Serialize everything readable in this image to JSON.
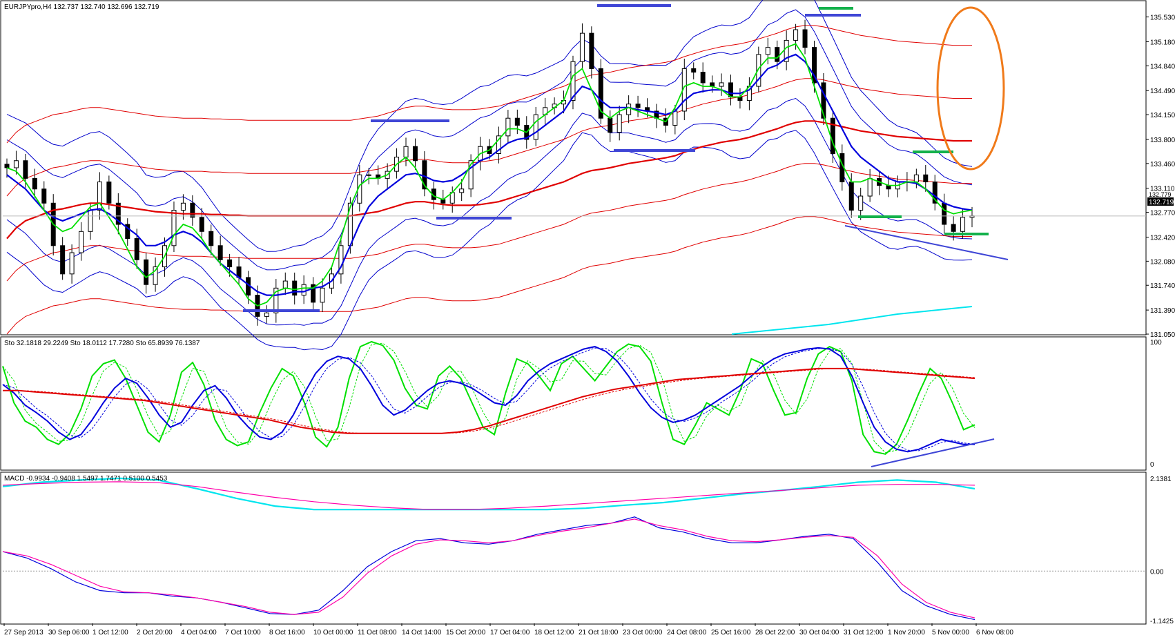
{
  "header": {
    "price_title": "EURJPYpro,H4  132.737 132.740 132.696 132.719",
    "sto_title": "Sto 32.1818 29.2249   Sto 18.0112 17.7280   Sto 65.8939 76.1387",
    "macd_title": "MACD -0.9934 -0.9408 1.5497 1.7471 0.5100 0.5453"
  },
  "current_price_tag": "132.719",
  "current_price_aux": "132.779",
  "colors": {
    "candle": "#000000",
    "ma_green": "#00e000",
    "ma_blue": "#0000dd",
    "ma_red": "#e00000",
    "band_blue": "#0000cc",
    "band_red": "#e00000",
    "cyan": "#00e5ee",
    "magenta": "#ff00aa",
    "orange": "#f07a1a",
    "annot_green": "#14b14b",
    "annot_blue": "#3f46d6"
  },
  "chart_data": [
    {
      "type": "candlestick",
      "symbol": "EURJPYpro",
      "timeframe": "H4",
      "ohlc_last": {
        "open": 132.737,
        "high": 132.74,
        "low": 132.696,
        "close": 132.719
      },
      "ylim": [
        131.05,
        135.75
      ],
      "y_ticks": [
        "135.530",
        "135.180",
        "134.840",
        "134.490",
        "134.150",
        "133.800",
        "133.460",
        "133.110",
        "132.770",
        "132.420",
        "132.080",
        "131.740",
        "131.390",
        "131.050"
      ],
      "y_tick_values": [
        135.53,
        135.18,
        134.84,
        134.49,
        134.15,
        133.8,
        133.46,
        133.11,
        132.77,
        132.42,
        132.08,
        131.74,
        131.39,
        131.05
      ],
      "x_ticks": [
        "27 Sep 2013",
        "30 Sep 06:00",
        "1 Oct 12:00",
        "2 Oct 20:00",
        "4 Oct 04:00",
        "7 Oct 10:00",
        "8 Oct 16:00",
        "10 Oct 00:00",
        "11 Oct 08:00",
        "14 Oct 14:00",
        "15 Oct 20:00",
        "17 Oct 04:00",
        "18 Oct 12:00",
        "21 Oct 18:00",
        "23 Oct 00:00",
        "24 Oct 08:00",
        "25 Oct 16:00",
        "28 Oct 22:00",
        "30 Oct 04:00",
        "31 Oct 12:00",
        "1 Nov 20:00",
        "5 Nov 00:00",
        "6 Nov 08:00"
      ],
      "close_path": [
        133.4,
        133.5,
        133.25,
        133.1,
        132.9,
        132.3,
        131.9,
        132.2,
        132.5,
        132.8,
        133.2,
        132.9,
        132.6,
        132.4,
        132.1,
        131.75,
        132.0,
        132.3,
        132.8,
        132.9,
        132.7,
        132.5,
        132.3,
        132.1,
        132.0,
        131.85,
        131.6,
        131.3,
        131.35,
        131.7,
        131.8,
        131.6,
        131.75,
        131.5,
        131.7,
        131.9,
        132.3,
        132.9,
        133.3,
        133.3,
        133.25,
        133.35,
        133.55,
        133.7,
        133.5,
        133.1,
        132.95,
        132.9,
        133.05,
        133.1,
        133.5,
        133.7,
        133.6,
        133.85,
        134.1,
        134.0,
        133.8,
        134.15,
        134.25,
        134.3,
        134.35,
        134.9,
        135.3,
        134.8,
        134.1,
        133.9,
        134.15,
        134.3,
        134.25,
        134.2,
        134.1,
        134.0,
        134.2,
        134.8,
        134.75,
        134.6,
        134.55,
        134.6,
        134.4,
        134.35,
        134.55,
        135.0,
        135.1,
        134.9,
        135.2,
        135.35,
        135.1,
        134.6,
        134.1,
        133.6,
        133.2,
        132.8,
        133.0,
        133.25,
        133.15,
        133.1,
        133.2,
        133.2,
        133.3,
        133.2,
        132.9,
        132.6,
        132.5,
        132.7,
        132.72
      ],
      "ma_green": [
        133.4,
        133.35,
        133.2,
        133.0,
        132.8,
        132.6,
        132.5,
        132.55,
        132.7,
        132.85,
        132.9,
        132.7,
        132.5,
        132.25,
        132.0,
        131.85,
        131.95,
        132.15,
        132.45,
        132.6,
        132.55,
        132.4,
        132.2,
        132.05,
        131.9,
        131.75,
        131.55,
        131.45,
        131.5,
        131.65,
        131.7,
        131.68,
        131.7,
        131.7,
        131.8,
        132.0,
        132.4,
        132.85,
        133.15,
        133.25,
        133.25,
        133.3,
        133.45,
        133.55,
        133.4,
        133.15,
        133.0,
        132.95,
        133.05,
        133.2,
        133.45,
        133.6,
        133.65,
        133.8,
        133.95,
        133.95,
        133.9,
        134.05,
        134.15,
        134.25,
        134.35,
        134.7,
        134.8,
        134.5,
        134.2,
        134.1,
        134.2,
        134.25,
        134.2,
        134.15,
        134.1,
        134.05,
        134.25,
        134.55,
        134.6,
        134.55,
        134.55,
        134.5,
        134.4,
        134.4,
        134.55,
        134.8,
        134.95,
        134.95,
        135.1,
        135.15,
        134.95,
        134.55,
        134.15,
        133.75,
        133.45,
        133.2,
        133.2,
        133.25,
        133.2,
        133.15,
        133.15,
        133.2,
        133.2,
        133.1,
        132.95,
        132.8,
        132.75,
        132.78,
        132.8
      ],
      "ma_blue": [
        133.3,
        133.2,
        133.1,
        132.95,
        132.8,
        132.7,
        132.65,
        132.7,
        132.75,
        132.8,
        132.82,
        132.75,
        132.65,
        132.55,
        132.45,
        132.3,
        132.3,
        132.35,
        132.45,
        132.5,
        132.45,
        132.35,
        132.2,
        132.05,
        131.95,
        131.85,
        131.75,
        131.65,
        131.6,
        131.6,
        131.62,
        131.65,
        131.65,
        131.7,
        131.72,
        131.8,
        132.0,
        132.3,
        132.6,
        132.85,
        133.0,
        133.1,
        133.2,
        133.3,
        133.32,
        133.28,
        133.22,
        133.2,
        133.22,
        133.3,
        133.4,
        133.5,
        133.55,
        133.65,
        133.75,
        133.8,
        133.82,
        133.9,
        134.0,
        134.1,
        134.2,
        134.4,
        134.55,
        134.5,
        134.35,
        134.25,
        134.25,
        134.25,
        134.22,
        134.2,
        134.18,
        134.15,
        134.2,
        134.35,
        134.45,
        134.48,
        134.5,
        134.5,
        134.45,
        134.45,
        134.5,
        134.65,
        134.8,
        134.85,
        134.95,
        135.0,
        134.9,
        134.7,
        134.45,
        134.2,
        133.95,
        133.7,
        133.55,
        133.45,
        133.35,
        133.25,
        133.2,
        133.2,
        133.18,
        133.1,
        133.0,
        132.9,
        132.85,
        132.82,
        132.8
      ],
      "ma_red_thick": [
        132.4,
        132.55,
        132.65,
        132.7,
        132.75,
        132.8,
        132.82,
        132.85,
        132.88,
        132.9,
        132.9,
        132.88,
        132.86,
        132.84,
        132.82,
        132.8,
        132.78,
        132.77,
        132.76,
        132.75,
        132.75,
        132.75,
        132.74,
        132.74,
        132.73,
        132.73,
        132.72,
        132.72,
        132.72,
        132.72,
        132.72,
        132.72,
        132.72,
        132.72,
        132.72,
        132.72,
        132.72,
        132.72,
        132.74,
        132.76,
        132.78,
        132.82,
        132.86,
        132.9,
        132.92,
        132.92,
        132.9,
        132.88,
        132.87,
        132.87,
        132.87,
        132.88,
        132.9,
        132.92,
        132.96,
        133.0,
        133.04,
        133.08,
        133.12,
        133.16,
        133.2,
        133.26,
        133.32,
        133.36,
        133.38,
        133.4,
        133.43,
        133.46,
        133.48,
        133.5,
        133.52,
        133.54,
        133.57,
        133.62,
        133.66,
        133.7,
        133.73,
        133.76,
        133.78,
        133.8,
        133.83,
        133.87,
        133.91,
        133.95,
        134.0,
        134.04,
        134.06,
        134.06,
        134.04,
        134.01,
        133.98,
        133.95,
        133.92,
        133.9,
        133.88,
        133.86,
        133.84,
        133.83,
        133.82,
        133.81,
        133.8,
        133.79,
        133.78,
        133.78,
        133.78
      ]
    },
    {
      "type": "line",
      "name": "Sto",
      "ylim": [
        0,
        100
      ],
      "y_ticks": [
        "100",
        "0"
      ],
      "y_tick_values": [
        100,
        0
      ],
      "series": [
        {
          "values": [
            80,
            50,
            35,
            30,
            20,
            16,
            25,
            45,
            72,
            82,
            85,
            70,
            48,
            26,
            18,
            40,
            75,
            83,
            65,
            36,
            20,
            15,
            18,
            42,
            62,
            78,
            72,
            50,
            22,
            14,
            30,
            70,
            96,
            100,
            97,
            85,
            62,
            48,
            45,
            72,
            80,
            70,
            50,
            30,
            24,
            58,
            86,
            82,
            72,
            60,
            82,
            88,
            78,
            68,
            80,
            92,
            98,
            96,
            84,
            50,
            20,
            16,
            32,
            50,
            45,
            40,
            60,
            86,
            82,
            60,
            40,
            42,
            70,
            90,
            96,
            92,
            68,
            24,
            10,
            8,
            16,
            36,
            58,
            78,
            70,
            50,
            28,
            32
          ]
        },
        {
          "values": [
            65,
            58,
            48,
            42,
            35,
            26,
            20,
            24,
            36,
            50,
            62,
            70,
            66,
            54,
            40,
            30,
            34,
            48,
            60,
            64,
            54,
            40,
            30,
            22,
            20,
            26,
            40,
            58,
            74,
            84,
            88,
            86,
            78,
            64,
            48,
            40,
            44,
            52,
            60,
            66,
            68,
            66,
            62,
            56,
            50,
            48,
            56,
            68,
            76,
            82,
            86,
            90,
            94,
            96,
            92,
            84,
            72,
            58,
            46,
            38,
            34,
            36,
            40,
            46,
            52,
            58,
            64,
            72,
            80,
            86,
            90,
            92,
            94,
            95,
            94,
            88,
            72,
            50,
            30,
            18,
            12,
            10,
            12,
            16,
            20,
            18,
            16,
            16
          ]
        },
        {
          "values": [
            60,
            60,
            59,
            58,
            57,
            56,
            55,
            54,
            53,
            52,
            50,
            48,
            46,
            44,
            42,
            40,
            38,
            36,
            33,
            30,
            28,
            26,
            25,
            25,
            25,
            25,
            25,
            25,
            25,
            26,
            28,
            31,
            35,
            39,
            43,
            47,
            51,
            55,
            58,
            61,
            63,
            65,
            67,
            69,
            70,
            71,
            72,
            73,
            74,
            75,
            76,
            77,
            78,
            78,
            78,
            77,
            76,
            75,
            74,
            73,
            72,
            71,
            70
          ]
        }
      ]
    },
    {
      "type": "line",
      "name": "MACD",
      "ylim": [
        -1.1425,
        2.1381
      ],
      "y_ticks": [
        "2.1381",
        "0.00",
        "-1.1425"
      ],
      "y_tick_values": [
        2.1381,
        0.0,
        -1.1425
      ],
      "series": [
        {
          "values": [
            0.45,
            0.3,
            0.05,
            -0.25,
            -0.45,
            -0.5,
            -0.5,
            -0.58,
            -0.62,
            -0.72,
            -0.85,
            -0.98,
            -1.0,
            -0.9,
            -0.45,
            0.1,
            0.45,
            0.7,
            0.75,
            0.65,
            0.62,
            0.7,
            0.85,
            0.95,
            1.05,
            1.1,
            1.25,
            1.0,
            0.9,
            0.75,
            0.65,
            0.65,
            0.72,
            0.8,
            0.85,
            0.75,
            0.2,
            -0.45,
            -0.8,
            -1.0,
            -1.12
          ]
        },
        {
          "values": [
            0.45,
            0.35,
            0.15,
            -0.1,
            -0.35,
            -0.48,
            -0.5,
            -0.55,
            -0.62,
            -0.72,
            -0.82,
            -0.95,
            -1.0,
            -0.95,
            -0.6,
            -0.05,
            0.35,
            0.62,
            0.72,
            0.7,
            0.65,
            0.7,
            0.82,
            0.92,
            1.0,
            1.1,
            1.2,
            1.05,
            0.95,
            0.8,
            0.7,
            0.68,
            0.72,
            0.78,
            0.82,
            0.78,
            0.35,
            -0.3,
            -0.72,
            -0.95,
            -1.08
          ]
        },
        {
          "values": [
            1.95,
            2.05,
            2.1,
            2.14,
            2.1,
            1.9,
            1.68,
            1.5,
            1.42,
            1.42,
            1.42,
            1.42,
            1.42,
            1.42,
            1.42,
            1.45,
            1.52,
            1.58,
            1.68,
            1.78,
            1.86,
            1.95,
            2.05,
            2.1,
            2.05,
            1.9
          ]
        },
        {
          "values": [
            1.98,
            2.02,
            2.05,
            2.06,
            2.04,
            1.95,
            1.82,
            1.7,
            1.6,
            1.52,
            1.46,
            1.42,
            1.42,
            1.45,
            1.5,
            1.56,
            1.62,
            1.68,
            1.74,
            1.8,
            1.86,
            1.92,
            1.98,
            2.0,
            2.0,
            1.98
          ]
        }
      ]
    }
  ]
}
